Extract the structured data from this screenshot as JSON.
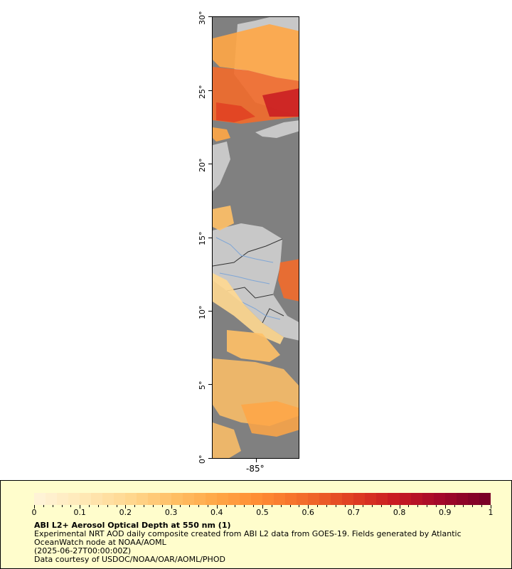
{
  "map": {
    "lat_ticks": [
      "0°",
      "5°",
      "10°",
      "15°",
      "20°",
      "25°",
      "30°"
    ],
    "lon_tick": "-85°",
    "extent": {
      "lat_min": 0,
      "lat_max": 30,
      "lon": -85
    },
    "colors": {
      "ocean": "#808080",
      "land": "#c8c8c8",
      "border": "#333333",
      "river": "#7fa6d6"
    }
  },
  "legend": {
    "colorbar_ticks": [
      "0",
      "0.1",
      "0.2",
      "0.3",
      "0.4",
      "0.5",
      "0.6",
      "0.7",
      "0.8",
      "0.9",
      "1"
    ],
    "colorbar_range": [
      0,
      1
    ],
    "colorbar_colors": [
      "#fff3d6",
      "#ffe8b5",
      "#ffd890",
      "#ffc066",
      "#ffa645",
      "#ff8a33",
      "#f26a2a",
      "#e04022",
      "#c81a22",
      "#a3082a",
      "#7a0026"
    ],
    "title": "ABI L2+ Aerosol Optical Depth at 550 nm (1)",
    "line1": "Experimental NRT AOD daily composite created from ABI L2 data from GOES-19. Fields generated by Atlantic",
    "line2": "OceanWatch node at NOAA/AOML",
    "line3": "(2025-06-27T00:00:00Z)",
    "line4": "Data courtesy of USDOC/NOAA/OAR/AOML/PHOD"
  }
}
